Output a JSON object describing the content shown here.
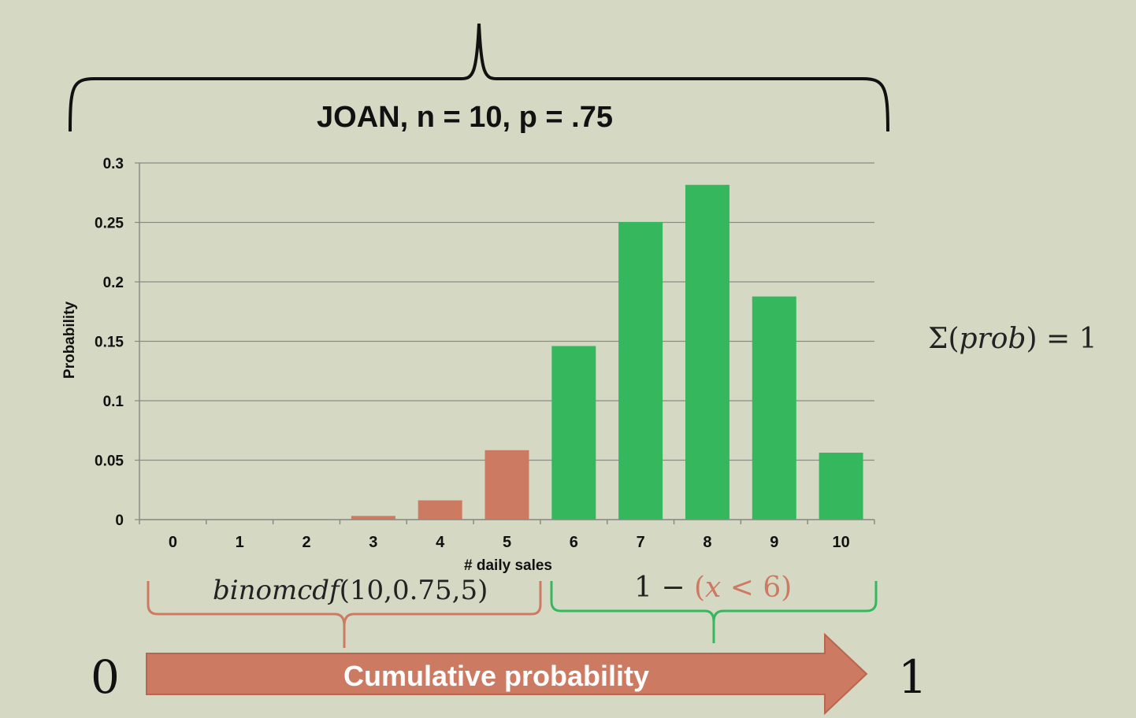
{
  "chart_data": {
    "type": "bar",
    "title": "JOAN, n = 10, p = .75",
    "xlabel": "# daily sales",
    "ylabel": "Probability",
    "categories": [
      "0",
      "1",
      "2",
      "3",
      "4",
      "5",
      "6",
      "7",
      "8",
      "9",
      "10"
    ],
    "values": [
      1e-06,
      3e-05,
      0.0004,
      0.0031,
      0.0162,
      0.0584,
      0.146,
      0.2503,
      0.2816,
      0.1877,
      0.0563
    ],
    "ylim": [
      0,
      0.3
    ],
    "yticks": [
      "0",
      "0.05",
      "0.1",
      "0.15",
      "0.2",
      "0.25",
      "0.3"
    ],
    "ytick_values": [
      0,
      0.05,
      0.1,
      0.15,
      0.2,
      0.25,
      0.3
    ],
    "grid": true,
    "bar_colors": [
      "#cd7a62",
      "#cd7a62",
      "#cd7a62",
      "#cd7a62",
      "#cd7a62",
      "#cd7a62",
      "#35b75e",
      "#35b75e",
      "#35b75e",
      "#35b75e",
      "#35b75e"
    ]
  },
  "annotations": {
    "binom_fn": "binomcdf",
    "binom_args": "(10,0.75,5)",
    "complement_prefix": "1 − ",
    "complement_open": "(",
    "complement_var": "x",
    "complement_rest": " < 6)",
    "sum_prefix": "Σ(",
    "sum_var": "prob",
    "sum_suffix": ") = 1",
    "arrow_label": "Cumulative probability",
    "arrow_start": "0",
    "arrow_end": "1"
  },
  "colors": {
    "background": "#d5d9c4",
    "red": "#cd7a62",
    "green": "#35b75e",
    "grid": "#8a8c84"
  }
}
